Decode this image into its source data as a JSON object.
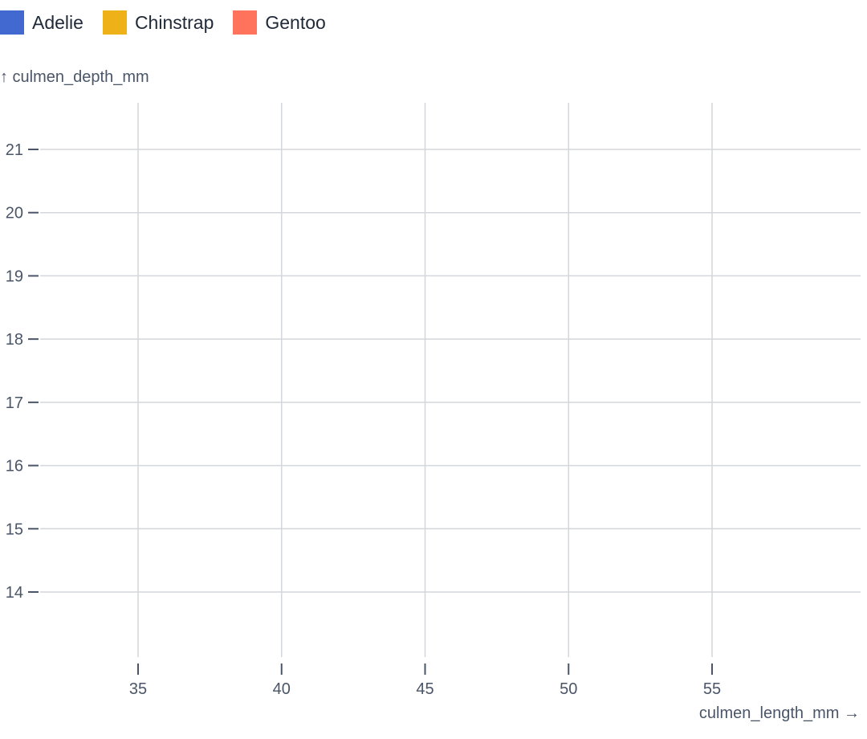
{
  "chart_data": {
    "type": "scatter",
    "legend": [
      {
        "name": "Adelie",
        "color": "#4269d0"
      },
      {
        "name": "Chinstrap",
        "color": "#efb118"
      },
      {
        "name": "Gentoo",
        "color": "#ff725c"
      }
    ],
    "xlabel": "culmen_length_mm →",
    "ylabel": "↑ culmen_depth_mm",
    "xlim": [
      32.3,
      59.9
    ],
    "ylim": [
      12.9,
      21.75
    ],
    "xticks": [
      35,
      40,
      45,
      50,
      55
    ],
    "yticks": [
      14,
      15,
      16,
      17,
      18,
      19,
      20,
      21
    ],
    "grid": true,
    "series": [
      {
        "name": "Adelie",
        "x": [],
        "y": []
      },
      {
        "name": "Chinstrap",
        "x": [],
        "y": []
      },
      {
        "name": "Gentoo",
        "x": [],
        "y": []
      }
    ]
  }
}
